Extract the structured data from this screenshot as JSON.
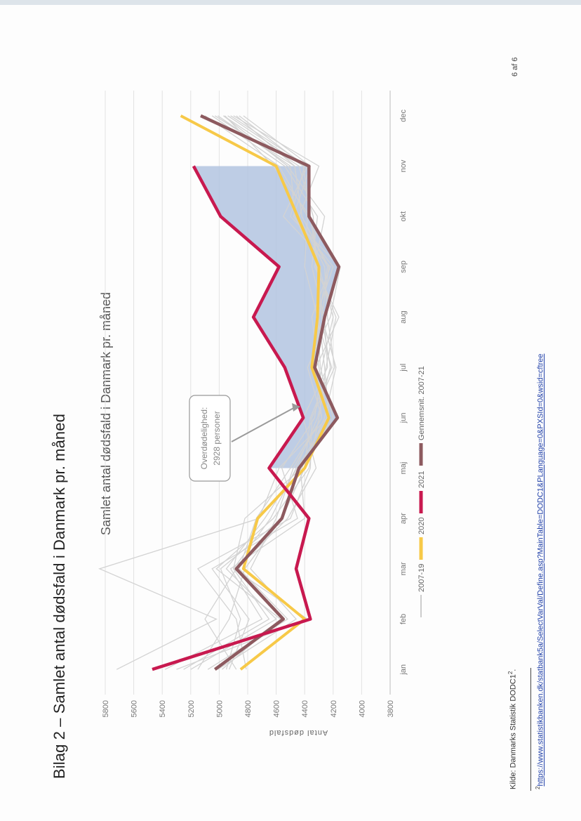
{
  "document": {
    "heading": "Bilag 2 – Samlet antal dødsfald i Danmark pr. måned",
    "source": "Kilde: Danmarks Statistik DODC1",
    "source_superscript": "2",
    "source_end": ".",
    "footnote_number": "2",
    "footnote_url": "https://www.statistikbanken.dk/statbank5a/SelectVarVal/Define.asp?MainTable=DODC1&PLanguage=0&PXSId=0&wsid=cftree",
    "page_number": "6 af 6"
  },
  "chart_data": {
    "type": "line",
    "title": "Samlet antal dødsfald i Danmark pr. måned",
    "ylabel": "Antal dødsfald",
    "xlabel": "",
    "ylim": [
      3800,
      5800
    ],
    "yticks": [
      "3800",
      "4000",
      "4200",
      "4400",
      "4600",
      "4800",
      "5000",
      "5200",
      "5400",
      "5600",
      "5800"
    ],
    "categories": [
      "jan",
      "feb",
      "mar",
      "apr",
      "maj",
      "jun",
      "jul",
      "aug",
      "sep",
      "okt",
      "nov",
      "dec"
    ],
    "grid": true,
    "legend_position": "bottom",
    "legend": [
      "2007-19",
      "2020",
      "2021",
      "Gennemsnit. 2007-21"
    ],
    "colors": {
      "2007-19": "#cccccc",
      "2020": "#f7c948",
      "2021": "#c8194f",
      "avg": "#8d5a5f",
      "shade": "#b3c4e0",
      "annotation_arrow": "#9a9a9a"
    },
    "annotation": {
      "line1": "Overdødelighed:",
      "line2": "2928 personer"
    },
    "series": [
      {
        "name": "2007-19",
        "values": [
          [
            5720,
            5020,
            5840,
            4720,
            4580,
            4240,
            4320,
            4300,
            4290,
            4470,
            4500,
            5010
          ],
          [
            5300,
            4380,
            4900,
            4820,
            4420,
            4260,
            4180,
            4280,
            4230,
            4420,
            4470,
            4880
          ],
          [
            4980,
            4570,
            5020,
            4620,
            4370,
            4300,
            4250,
            4180,
            4320,
            4340,
            4440,
            4970
          ],
          [
            5150,
            4930,
            4820,
            4560,
            4400,
            4360,
            4210,
            4320,
            4200,
            4480,
            4360,
            4830
          ],
          [
            4930,
            4790,
            5050,
            4450,
            4560,
            4330,
            4280,
            4200,
            4300,
            4360,
            4620,
            4960
          ],
          [
            5200,
            4600,
            4950,
            4680,
            4450,
            4240,
            4300,
            4350,
            4220,
            4550,
            4380,
            4920
          ],
          [
            4880,
            5100,
            4880,
            4520,
            4320,
            4410,
            4240,
            4260,
            4350,
            4310,
            4540,
            5050
          ],
          [
            5010,
            4460,
            4780,
            4600,
            4480,
            4280,
            4380,
            4220,
            4150,
            4500,
            4400,
            4860
          ],
          [
            5380,
            4700,
            4920,
            4400,
            4430,
            4200,
            4290,
            4310,
            4400,
            4380,
            4580,
            5100
          ],
          [
            4810,
            4880,
            5150,
            4500,
            4360,
            4350,
            4190,
            4240,
            4260,
            4440,
            4300,
            4900
          ],
          [
            5080,
            4520,
            4860,
            4740,
            4500,
            4280,
            4320,
            4160,
            4330,
            4260,
            4520,
            4970
          ],
          [
            4950,
            4850,
            4990,
            4560,
            4400,
            4230,
            4260,
            4300,
            4240,
            4420,
            4470,
            5030
          ],
          [
            5250,
            4650,
            4900,
            4640,
            4460,
            4310,
            4220,
            4280,
            4310,
            4360,
            4410,
            4940
          ]
        ]
      },
      {
        "name": "2020",
        "values": [
          4850,
          4400,
          4830,
          4730,
          4400,
          4230,
          4350,
          4310,
          4300,
          4450,
          4600,
          5270
        ]
      },
      {
        "name": "2021",
        "values": [
          5470,
          4360,
          4460,
          4370,
          4650,
          4410,
          4540,
          4760,
          4580,
          4990,
          5180,
          null
        ]
      },
      {
        "name": "Gennemsnit. 2007-21",
        "values": [
          5030,
          4550,
          4880,
          4560,
          4440,
          4170,
          4330,
          4260,
          4160,
          4370,
          4370,
          5130
        ]
      }
    ]
  }
}
